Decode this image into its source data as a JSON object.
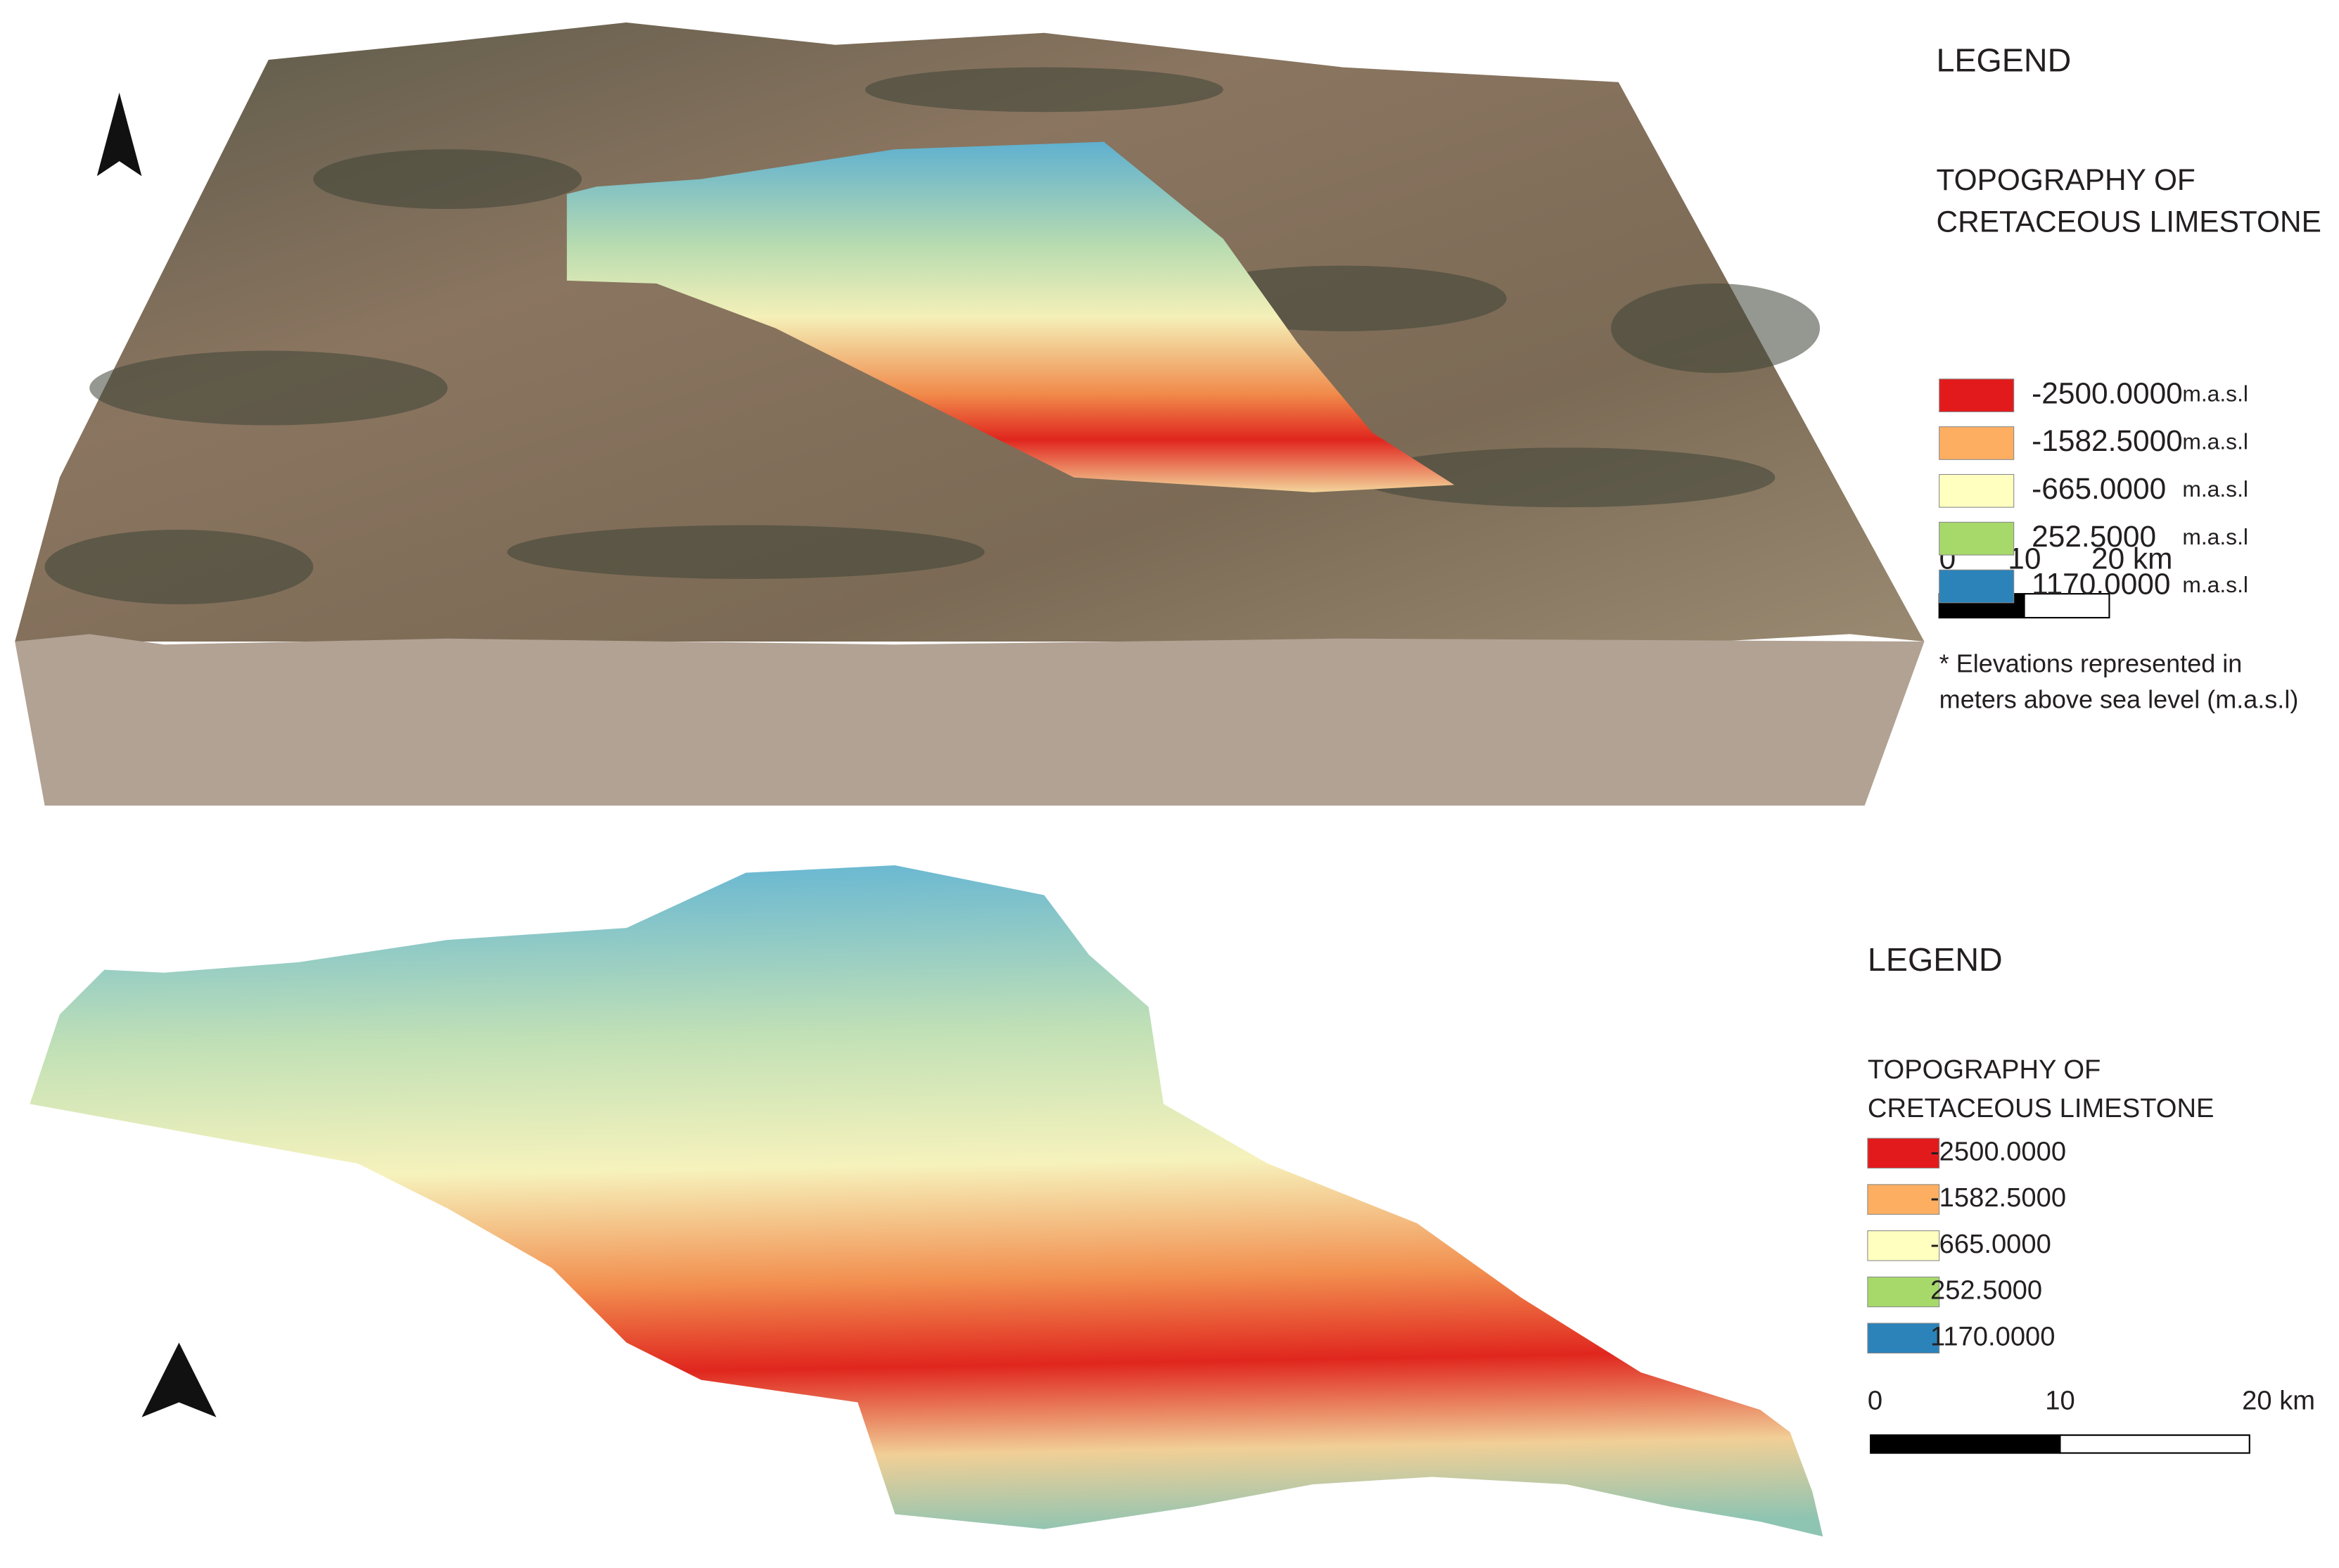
{
  "top_panel": {
    "legend": {
      "title": "LEGEND",
      "subtitle_line1": "TOPOGRAPHY OF",
      "subtitle_line2": " CRETACEOUS LIMESTONE",
      "items": [
        {
          "label": "-2500.0000",
          "unit": "m.a.s.l",
          "color": "#e31a1c"
        },
        {
          "label": "-1582.5000",
          "unit": "m.a.s.l",
          "color": "#fdae61"
        },
        {
          "label": "-665.0000",
          "unit": "m.a.s.l",
          "color": "#ffffc0"
        },
        {
          "label": "252.5000",
          "unit": "m.a.s.l",
          "color": "#a6d96a"
        },
        {
          "label": "1170.0000",
          "unit": "m.a.s.l",
          "color": "#2b83ba"
        }
      ],
      "scale_labels": [
        "0",
        "10",
        "20 km"
      ],
      "note_line1": "* Elevations represented in",
      "note_line2": "meters above sea level (m.a.s.l)"
    }
  },
  "bottom_panel": {
    "legend": {
      "title": "LEGEND",
      "subtitle_line1": "TOPOGRAPHY OF",
      "subtitle_line2": " CRETACEOUS LIMESTONE",
      "items": [
        {
          "label": "-2500.0000",
          "color": "#e31a1c"
        },
        {
          "label": "-1582.5000",
          "color": "#fdae61"
        },
        {
          "label": "-665.0000",
          "color": "#ffffc0"
        },
        {
          "label": "252.5000",
          "color": "#a6d96a"
        },
        {
          "label": "1170.0000",
          "color": "#2b83ba"
        }
      ],
      "scale_labels": [
        "0",
        "10",
        "20 km"
      ]
    }
  }
}
